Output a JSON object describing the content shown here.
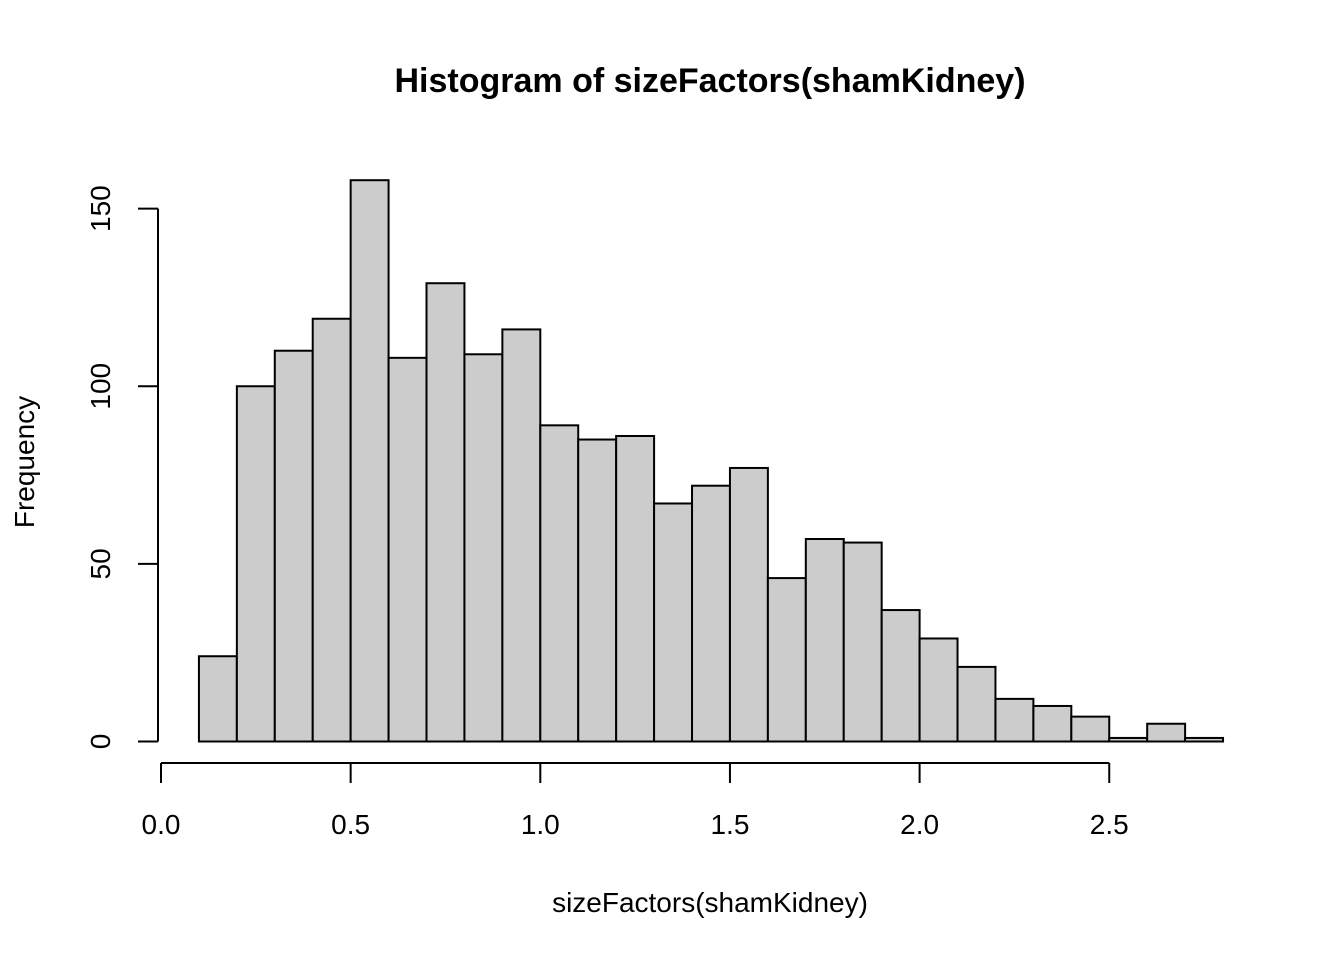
{
  "chart_data": {
    "type": "bar",
    "title": "Histogram of sizeFactors(shamKidney)",
    "xlabel": "sizeFactors(shamKidney)",
    "ylabel": "Frequency",
    "xlim": [
      0.0,
      2.8
    ],
    "ylim": [
      0,
      160
    ],
    "grid": false,
    "legend": "none",
    "bar_fill": "#cccccc",
    "bar_stroke": "#000000",
    "x_ticks": [
      0.0,
      0.5,
      1.0,
      1.5,
      2.0,
      2.5
    ],
    "x_tick_labels": [
      "0.0",
      "0.5",
      "1.0",
      "1.5",
      "2.0",
      "2.5"
    ],
    "y_ticks": [
      0,
      50,
      100,
      150
    ],
    "y_tick_labels": [
      "0",
      "50",
      "100",
      "150"
    ],
    "bins": [
      {
        "x0": 0.1,
        "x1": 0.2,
        "count": 24
      },
      {
        "x0": 0.2,
        "x1": 0.3,
        "count": 100
      },
      {
        "x0": 0.3,
        "x1": 0.4,
        "count": 110
      },
      {
        "x0": 0.4,
        "x1": 0.5,
        "count": 119
      },
      {
        "x0": 0.5,
        "x1": 0.6,
        "count": 158
      },
      {
        "x0": 0.6,
        "x1": 0.7,
        "count": 108
      },
      {
        "x0": 0.7,
        "x1": 0.8,
        "count": 129
      },
      {
        "x0": 0.8,
        "x1": 0.9,
        "count": 109
      },
      {
        "x0": 0.9,
        "x1": 1.0,
        "count": 116
      },
      {
        "x0": 1.0,
        "x1": 1.1,
        "count": 89
      },
      {
        "x0": 1.1,
        "x1": 1.2,
        "count": 85
      },
      {
        "x0": 1.2,
        "x1": 1.3,
        "count": 86
      },
      {
        "x0": 1.3,
        "x1": 1.4,
        "count": 67
      },
      {
        "x0": 1.4,
        "x1": 1.5,
        "count": 72
      },
      {
        "x0": 1.5,
        "x1": 1.6,
        "count": 77
      },
      {
        "x0": 1.6,
        "x1": 1.7,
        "count": 46
      },
      {
        "x0": 1.7,
        "x1": 1.8,
        "count": 57
      },
      {
        "x0": 1.8,
        "x1": 1.9,
        "count": 56
      },
      {
        "x0": 1.9,
        "x1": 2.0,
        "count": 37
      },
      {
        "x0": 2.0,
        "x1": 2.1,
        "count": 29
      },
      {
        "x0": 2.1,
        "x1": 2.2,
        "count": 21
      },
      {
        "x0": 2.2,
        "x1": 2.3,
        "count": 12
      },
      {
        "x0": 2.3,
        "x1": 2.4,
        "count": 10
      },
      {
        "x0": 2.4,
        "x1": 2.5,
        "count": 7
      },
      {
        "x0": 2.5,
        "x1": 2.6,
        "count": 1
      },
      {
        "x0": 2.6,
        "x1": 2.7,
        "count": 5
      },
      {
        "x0": 2.7,
        "x1": 2.8,
        "count": 1
      }
    ]
  }
}
